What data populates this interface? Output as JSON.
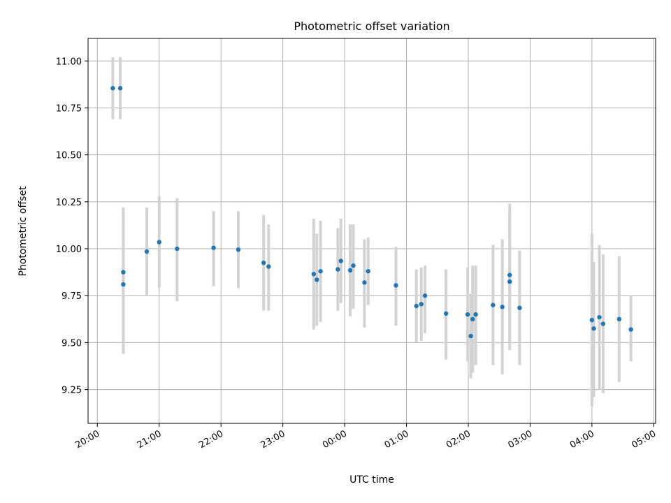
{
  "chart_data": {
    "type": "scatter",
    "title": "Photometric offset variation",
    "xlabel": "UTC time",
    "ylabel": "Photometric offset",
    "x_unit": "hours since 20:00 UTC",
    "xlim": [
      -0.15,
      9.03
    ],
    "ylim": [
      9.07,
      11.12
    ],
    "x_ticks": [
      {
        "value": 0,
        "label": "20:00"
      },
      {
        "value": 1,
        "label": "21:00"
      },
      {
        "value": 2,
        "label": "22:00"
      },
      {
        "value": 3,
        "label": "23:00"
      },
      {
        "value": 4,
        "label": "00:00"
      },
      {
        "value": 5,
        "label": "01:00"
      },
      {
        "value": 6,
        "label": "02:00"
      },
      {
        "value": 7,
        "label": "03:00"
      },
      {
        "value": 8,
        "label": "04:00"
      },
      {
        "value": 9,
        "label": "05:00"
      }
    ],
    "y_ticks": [
      {
        "value": 9.25,
        "label": "9.25"
      },
      {
        "value": 9.5,
        "label": "9.50"
      },
      {
        "value": 9.75,
        "label": "9.75"
      },
      {
        "value": 10.0,
        "label": "10.00"
      },
      {
        "value": 10.25,
        "label": "10.25"
      },
      {
        "value": 10.5,
        "label": "10.50"
      },
      {
        "value": 10.75,
        "label": "10.75"
      },
      {
        "value": 11.0,
        "label": "11.00"
      }
    ],
    "grid": true,
    "marker_color": "#1f77b4",
    "errorbar_color": "#d3d3d3",
    "series": [
      {
        "points": [
          {
            "x": 0.25,
            "y": 10.855,
            "err_low": 10.69,
            "err_high": 11.02
          },
          {
            "x": 0.37,
            "y": 10.855,
            "err_low": 10.69,
            "err_high": 11.02
          },
          {
            "x": 0.42,
            "y": 9.875,
            "err_low": 9.53,
            "err_high": 10.22
          },
          {
            "x": 0.42,
            "y": 9.81,
            "err_low": 9.44,
            "err_high": 10.18
          },
          {
            "x": 0.8,
            "y": 9.985,
            "err_low": 9.75,
            "err_high": 10.22
          },
          {
            "x": 1.0,
            "y": 10.035,
            "err_low": 9.79,
            "err_high": 10.28
          },
          {
            "x": 1.29,
            "y": 10.0,
            "err_low": 9.72,
            "err_high": 10.27
          },
          {
            "x": 1.88,
            "y": 10.005,
            "err_low": 9.8,
            "err_high": 10.2
          },
          {
            "x": 2.28,
            "y": 9.995,
            "err_low": 9.79,
            "err_high": 10.2
          },
          {
            "x": 2.69,
            "y": 9.925,
            "err_low": 9.67,
            "err_high": 10.18
          },
          {
            "x": 2.77,
            "y": 9.905,
            "err_low": 9.67,
            "err_high": 10.13
          },
          {
            "x": 3.5,
            "y": 9.865,
            "err_low": 9.57,
            "err_high": 10.16
          },
          {
            "x": 3.55,
            "y": 9.835,
            "err_low": 9.59,
            "err_high": 10.08
          },
          {
            "x": 3.61,
            "y": 9.88,
            "err_low": 9.61,
            "err_high": 10.15
          },
          {
            "x": 3.89,
            "y": 9.89,
            "err_low": 9.67,
            "err_high": 10.11
          },
          {
            "x": 3.94,
            "y": 9.935,
            "err_low": 9.71,
            "err_high": 10.16
          },
          {
            "x": 4.09,
            "y": 9.885,
            "err_low": 9.64,
            "err_high": 10.13
          },
          {
            "x": 4.14,
            "y": 9.91,
            "err_low": 9.68,
            "err_high": 10.13
          },
          {
            "x": 4.32,
            "y": 9.82,
            "err_low": 9.58,
            "err_high": 10.05
          },
          {
            "x": 4.38,
            "y": 9.88,
            "err_low": 9.7,
            "err_high": 10.06
          },
          {
            "x": 4.83,
            "y": 9.805,
            "err_low": 9.59,
            "err_high": 10.01
          },
          {
            "x": 5.16,
            "y": 9.695,
            "err_low": 9.5,
            "err_high": 9.89
          },
          {
            "x": 5.24,
            "y": 9.705,
            "err_low": 9.51,
            "err_high": 9.9
          },
          {
            "x": 5.3,
            "y": 9.75,
            "err_low": 9.55,
            "err_high": 9.91
          },
          {
            "x": 5.64,
            "y": 9.655,
            "err_low": 9.41,
            "err_high": 9.89
          },
          {
            "x": 5.99,
            "y": 9.65,
            "err_low": 9.4,
            "err_high": 9.9
          },
          {
            "x": 6.04,
            "y": 9.535,
            "err_low": 9.31,
            "err_high": 9.76
          },
          {
            "x": 6.07,
            "y": 9.625,
            "err_low": 9.34,
            "err_high": 9.91
          },
          {
            "x": 6.12,
            "y": 9.65,
            "err_low": 9.38,
            "err_high": 9.91
          },
          {
            "x": 6.4,
            "y": 9.7,
            "err_low": 9.38,
            "err_high": 10.02
          },
          {
            "x": 6.55,
            "y": 9.69,
            "err_low": 9.33,
            "err_high": 10.05
          },
          {
            "x": 6.67,
            "y": 9.86,
            "err_low": 9.52,
            "err_high": 10.19
          },
          {
            "x": 6.67,
            "y": 9.825,
            "err_low": 9.46,
            "err_high": 10.24
          },
          {
            "x": 6.83,
            "y": 9.685,
            "err_low": 9.38,
            "err_high": 9.99
          },
          {
            "x": 8.0,
            "y": 9.62,
            "err_low": 9.16,
            "err_high": 10.08
          },
          {
            "x": 8.03,
            "y": 9.575,
            "err_low": 9.21,
            "err_high": 9.93
          },
          {
            "x": 8.12,
            "y": 9.635,
            "err_low": 9.25,
            "err_high": 10.02
          },
          {
            "x": 8.18,
            "y": 9.6,
            "err_low": 9.23,
            "err_high": 9.97
          },
          {
            "x": 8.44,
            "y": 9.625,
            "err_low": 9.29,
            "err_high": 9.96
          },
          {
            "x": 8.63,
            "y": 9.57,
            "err_low": 9.4,
            "err_high": 9.75
          }
        ]
      }
    ]
  }
}
